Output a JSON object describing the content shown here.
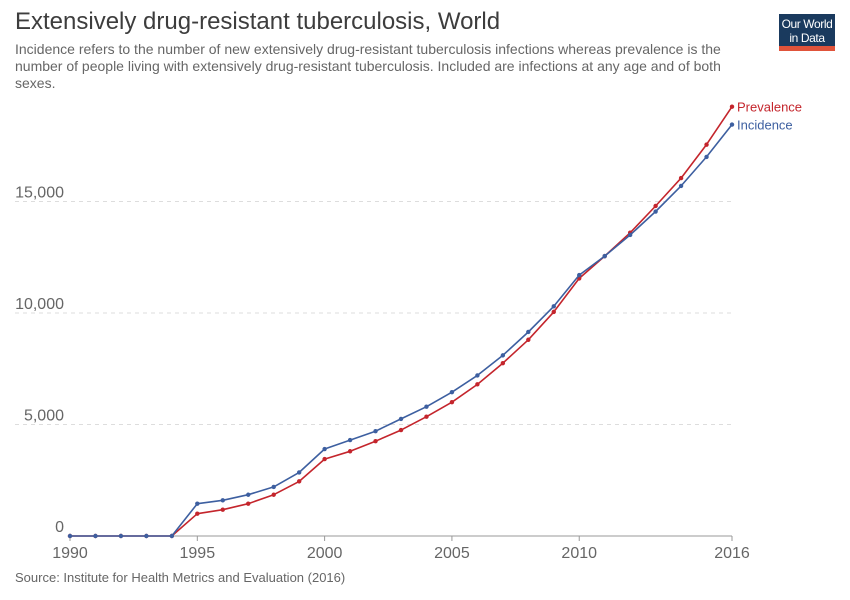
{
  "header": {
    "title": "Extensively drug-resistant tuberculosis, World",
    "subtitle": "Incidence refers to the number of new extensively drug-resistant tuberculosis infections whereas prevalence is the number of people living with extensively drug-resistant tuberculosis. Included are infections at any age and of both sexes."
  },
  "logo": {
    "line1": "Our World",
    "line2": "in Data",
    "bg_color": "#1a3a5e",
    "bar_color": "#e0533a"
  },
  "footer": {
    "source": "Source: Institute for Health Metrics and Evaluation (2016)"
  },
  "chart_data": {
    "type": "line",
    "x": [
      1990,
      1991,
      1992,
      1993,
      1994,
      1995,
      1996,
      1997,
      1998,
      1999,
      2000,
      2001,
      2002,
      2003,
      2004,
      2005,
      2006,
      2007,
      2008,
      2009,
      2010,
      2011,
      2012,
      2013,
      2014,
      2015,
      2016
    ],
    "series": [
      {
        "name": "Prevalence",
        "color": "#c4252c",
        "values": [
          0,
          0,
          0,
          0,
          0,
          1000,
          1180,
          1450,
          1850,
          2450,
          3450,
          3800,
          4250,
          4750,
          5350,
          6000,
          6800,
          7750,
          8800,
          10050,
          11550,
          12550,
          13600,
          14800,
          16050,
          17550,
          19250
        ]
      },
      {
        "name": "Incidence",
        "color": "#3d5fa0",
        "values": [
          0,
          0,
          0,
          0,
          0,
          1450,
          1600,
          1850,
          2200,
          2850,
          3900,
          4300,
          4700,
          5250,
          5800,
          6450,
          7200,
          8100,
          9150,
          10300,
          11700,
          12550,
          13500,
          14550,
          15700,
          17000,
          18450
        ]
      }
    ],
    "xticks": [
      1990,
      1995,
      2000,
      2005,
      2010,
      2016
    ],
    "yticks": [
      0,
      5000,
      10000,
      15000
    ],
    "ytick_labels": [
      "0",
      "5,000",
      "10,000",
      "15,000"
    ],
    "xlim": [
      1990,
      2016
    ],
    "ylim": [
      0,
      20000
    ],
    "grid": "horizontal dashed",
    "legend": "line-end labels"
  }
}
